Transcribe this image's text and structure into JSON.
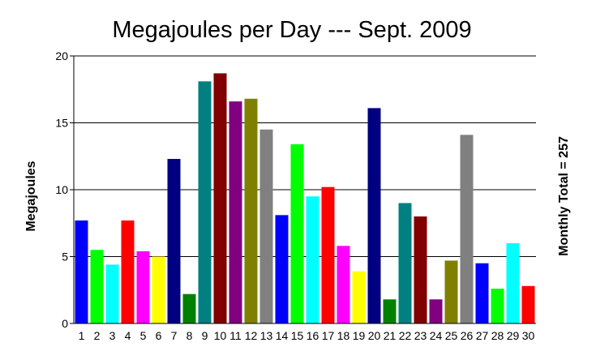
{
  "chart_data": {
    "type": "bar",
    "title": "Megajoules per Day --- Sept. 2009",
    "ylabel": "Megajoules",
    "right_label": "Monthly Total  = 257",
    "ylim": [
      0,
      20
    ],
    "yticks": [
      "0",
      "5",
      "10",
      "15",
      "20"
    ],
    "grid": true,
    "categories": [
      "1",
      "2",
      "3",
      "4",
      "5",
      "6",
      "7",
      "8",
      "9",
      "10",
      "11",
      "12",
      "13",
      "14",
      "15",
      "16",
      "17",
      "18",
      "19",
      "20",
      "21",
      "22",
      "23",
      "24",
      "25",
      "26",
      "27",
      "28",
      "29",
      "30"
    ],
    "values": [
      7.7,
      5.5,
      4.4,
      7.7,
      5.4,
      5.0,
      12.3,
      2.2,
      18.1,
      18.7,
      16.6,
      16.8,
      14.5,
      8.1,
      13.4,
      9.5,
      10.2,
      5.8,
      3.9,
      16.1,
      1.8,
      9.0,
      8.0,
      1.8,
      4.7,
      14.1,
      4.5,
      2.6,
      6.0,
      2.8
    ],
    "colors": [
      "#0000ff",
      "#00ff00",
      "#00ffff",
      "#ff0000",
      "#ff00ff",
      "#ffff00",
      "#000080",
      "#008000",
      "#008080",
      "#800000",
      "#800080",
      "#808000",
      "#808080",
      "#0000ff",
      "#00ff00",
      "#00ffff",
      "#ff0000",
      "#ff00ff",
      "#ffff00",
      "#000080",
      "#008000",
      "#008080",
      "#800000",
      "#800080",
      "#808000",
      "#808080",
      "#0000ff",
      "#00ff00",
      "#00ffff",
      "#ff0000"
    ]
  }
}
